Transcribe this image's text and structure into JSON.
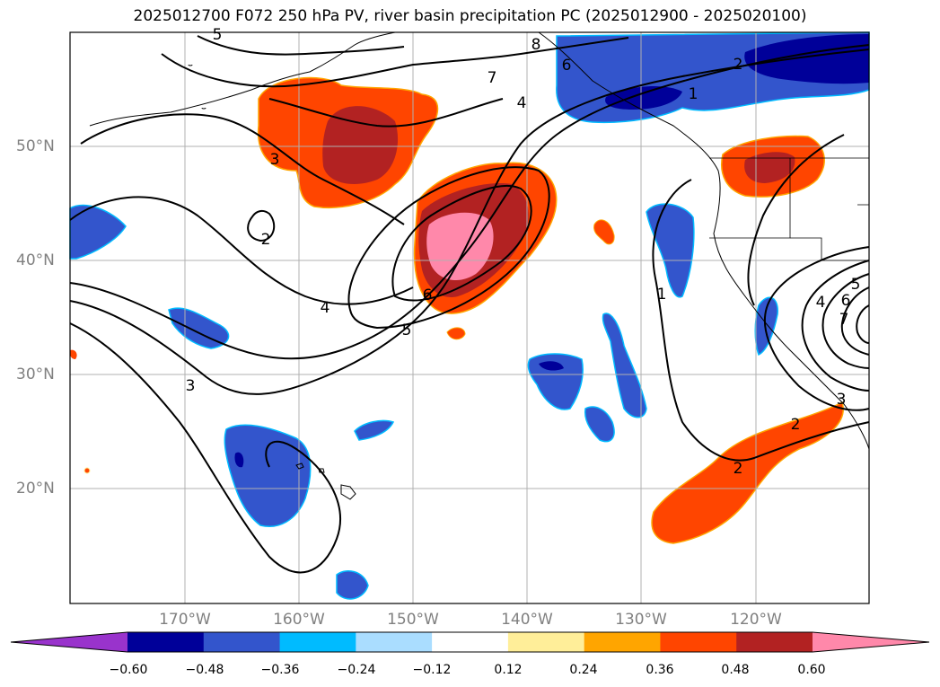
{
  "title": "2025012700 F072 250 hPa PV, river basin precipitation PC (2025012900 - 2025020100)",
  "latitude_labels": [
    "50°N",
    "40°N",
    "30°N",
    "20°N"
  ],
  "longitude_labels": [
    "170°W",
    "160°W",
    "150°W",
    "140°W",
    "130°W",
    "120°W"
  ],
  "colorbar": {
    "tick_labels": [
      "−0.60",
      "−0.48",
      "−0.36",
      "−0.24",
      "−0.12",
      "0.12",
      "0.24",
      "0.36",
      "0.48",
      "0.60"
    ],
    "colors": [
      "#9933cc",
      "#000099",
      "#3355cc",
      "#00bbff",
      "#aaddff",
      "#ffffff",
      "#ffee99",
      "#ffa500",
      "#ff4500",
      "#b22222",
      "#ff88aa"
    ]
  },
  "contour_labels": [
    "5",
    "8",
    "7",
    "4",
    "6",
    "2",
    "1",
    "3",
    "2",
    "4",
    "6",
    "5",
    "1",
    "3",
    "2",
    "7",
    "6",
    "5",
    "4",
    "3",
    "2"
  ],
  "colors": {
    "contour": "#000000",
    "grid": "#b0b0b0",
    "coast": "#000000"
  }
}
